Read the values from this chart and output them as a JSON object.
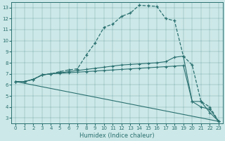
{
  "bg_color": "#cde8e8",
  "line_color": "#2a7070",
  "xlabel": "Humidex (Indice chaleur)",
  "xlim": [
    -0.5,
    23.5
  ],
  "ylim": [
    2.5,
    13.5
  ],
  "xticks": [
    0,
    1,
    2,
    3,
    4,
    5,
    6,
    7,
    8,
    9,
    10,
    11,
    12,
    13,
    14,
    15,
    16,
    17,
    18,
    19,
    20,
    21,
    22,
    23
  ],
  "yticks": [
    3,
    4,
    5,
    6,
    7,
    8,
    9,
    10,
    11,
    12,
    13
  ],
  "line1_x": [
    0,
    1,
    2,
    3,
    4,
    5,
    6,
    7,
    8,
    9,
    10,
    11,
    12,
    13,
    14,
    15,
    16,
    17,
    18,
    19,
    20,
    21,
    22,
    23
  ],
  "line1_y": [
    6.3,
    6.3,
    6.5,
    6.9,
    7.0,
    7.2,
    7.35,
    7.45,
    8.7,
    9.8,
    11.2,
    11.5,
    12.2,
    12.5,
    13.2,
    13.15,
    13.1,
    12.0,
    11.8,
    8.6,
    7.8,
    4.5,
    4.0,
    2.7
  ],
  "line2_x": [
    0,
    1,
    2,
    3,
    4,
    5,
    6,
    7,
    8,
    9,
    10,
    11,
    12,
    13,
    14,
    15,
    16,
    17,
    18,
    19,
    20,
    21,
    22,
    23
  ],
  "line2_y": [
    6.3,
    6.3,
    6.5,
    6.9,
    7.0,
    7.1,
    7.2,
    7.3,
    7.4,
    7.5,
    7.6,
    7.7,
    7.8,
    7.85,
    7.9,
    7.95,
    8.0,
    8.1,
    8.5,
    8.6,
    4.5,
    4.0,
    3.8,
    2.7
  ],
  "line3_x": [
    0,
    1,
    2,
    3,
    4,
    5,
    6,
    7,
    8,
    9,
    10,
    11,
    12,
    13,
    14,
    15,
    16,
    17,
    18,
    19,
    20,
    21,
    22,
    23
  ],
  "line3_y": [
    6.3,
    6.3,
    6.5,
    6.9,
    7.0,
    7.05,
    7.1,
    7.15,
    7.2,
    7.25,
    7.3,
    7.35,
    7.4,
    7.45,
    7.5,
    7.55,
    7.6,
    7.65,
    7.7,
    7.75,
    4.5,
    4.5,
    3.5,
    2.7
  ],
  "line4_x": [
    0,
    23
  ],
  "line4_y": [
    6.3,
    2.7
  ]
}
